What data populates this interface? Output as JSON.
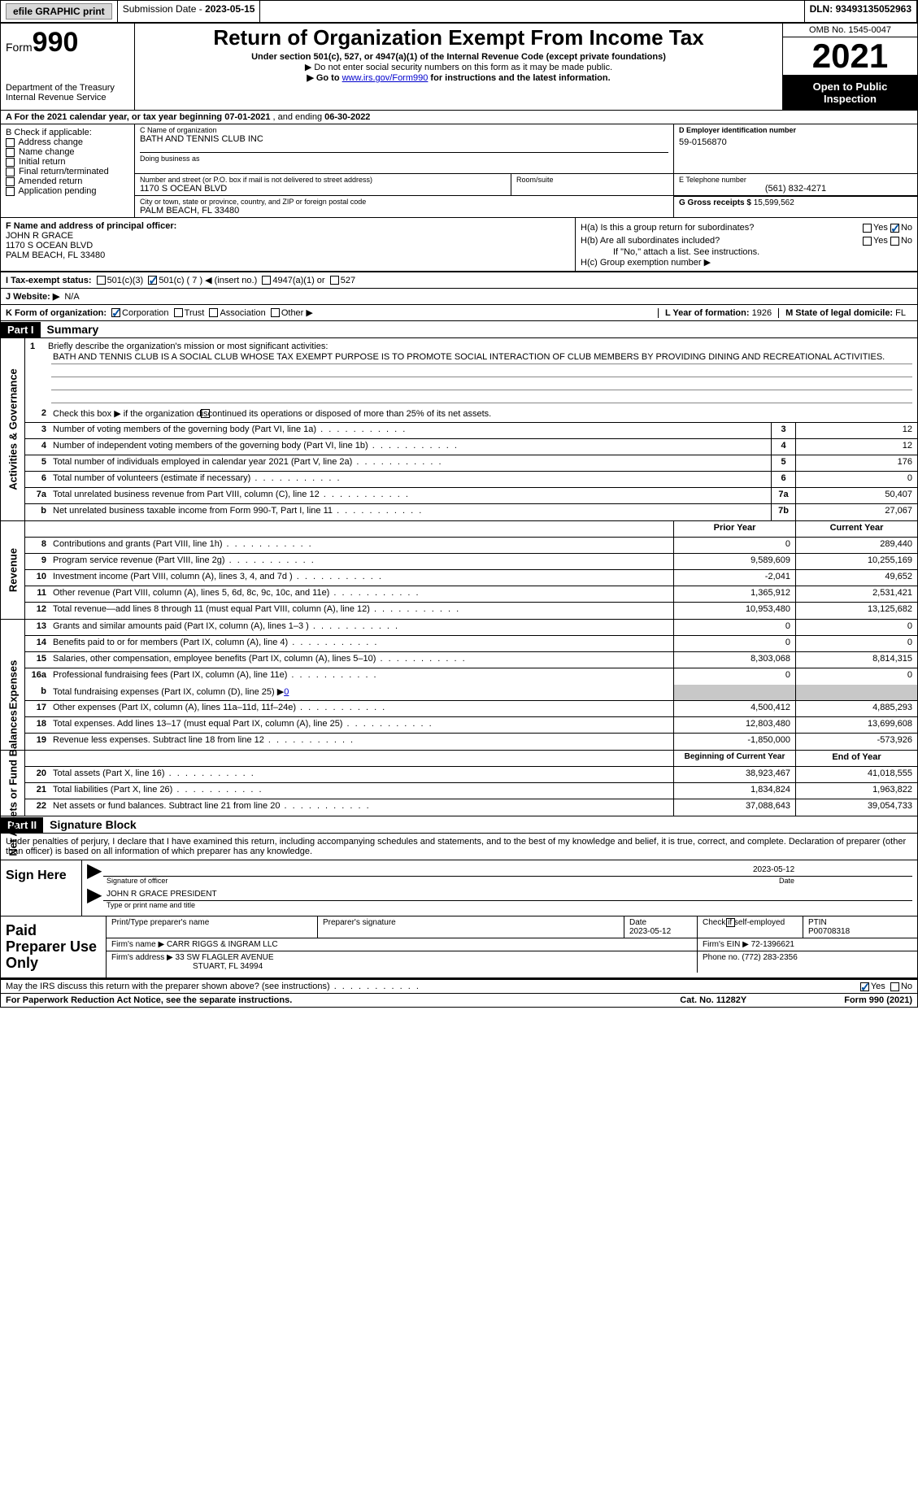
{
  "topbar": {
    "efile": "efile GRAPHIC print",
    "sub_label": "Submission Date - ",
    "sub_date": "2023-05-15",
    "dln_label": "DLN: ",
    "dln": "93493135052963"
  },
  "header": {
    "form_word": "Form",
    "form_num": "990",
    "dept1": "Department of the Treasury",
    "dept2": "Internal Revenue Service",
    "title": "Return of Organization Exempt From Income Tax",
    "sub": "Under section 501(c), 527, or 4947(a)(1) of the Internal Revenue Code (except private foundations)",
    "warn1": "▶ Do not enter social security numbers on this form as it may be made public.",
    "warn2_pre": "▶ Go to ",
    "warn2_link": "www.irs.gov/Form990",
    "warn2_post": " for instructions and the latest information.",
    "omb": "OMB No. 1545-0047",
    "year": "2021",
    "inspect": "Open to Public Inspection"
  },
  "rowA": {
    "label": "A  For the 2021 calendar year, or tax year beginning ",
    "begin": "07-01-2021",
    "mid": "   , and ending ",
    "end": "06-30-2022"
  },
  "colB": {
    "label": "B Check if applicable:",
    "opts": [
      "Address change",
      "Name change",
      "Initial return",
      "Final return/terminated",
      "Amended return",
      "Application pending"
    ]
  },
  "colC": {
    "name_label": "C Name of organization",
    "name": "BATH AND TENNIS CLUB INC",
    "dba_label": "Doing business as",
    "addr_label": "Number and street (or P.O. box if mail is not delivered to street address)",
    "suite_label": "Room/suite",
    "addr": "1170 S OCEAN BLVD",
    "city_label": "City or town, state or province, country, and ZIP or foreign postal code",
    "city": "PALM BEACH, FL  33480"
  },
  "colD": {
    "ein_label": "D Employer identification number",
    "ein": "59-0156870",
    "tel_label": "E Telephone number",
    "tel": "(561) 832-4271",
    "gross_label": "G Gross receipts $ ",
    "gross": "15,599,562"
  },
  "secF": {
    "label": "F Name and address of principal officer:",
    "name": "JOHN R GRACE",
    "addr1": "1170 S OCEAN BLVD",
    "addr2": "PALM BEACH, FL  33480"
  },
  "secH": {
    "a": "H(a)  Is this a group return for subordinates?",
    "b": "H(b)  Are all subordinates included?",
    "b_note": "If \"No,\" attach a list. See instructions.",
    "c": "H(c)  Group exemption number ▶",
    "yes": "Yes",
    "no": "No"
  },
  "rowI": {
    "label": "I    Tax-exempt status:",
    "o1": "501(c)(3)",
    "o2": "501(c) ( 7 ) ◀ (insert no.)",
    "o3": "4947(a)(1) or",
    "o4": "527"
  },
  "rowJ": {
    "label": "J   Website: ▶",
    "val": "N/A"
  },
  "rowK": {
    "label": "K Form of organization:",
    "o1": "Corporation",
    "o2": "Trust",
    "o3": "Association",
    "o4": "Other ▶",
    "l_year": "L Year of formation: ",
    "l_val": "1926",
    "m_state": "M State of legal domicile: ",
    "m_val": "FL"
  },
  "part1": {
    "hdr": "Part I",
    "title": "Summary"
  },
  "summary": {
    "l1_label": "Briefly describe the organization's mission or most significant activities:",
    "l1_text": "BATH AND TENNIS CLUB IS A SOCIAL CLUB WHOSE TAX EXEMPT PURPOSE IS TO PROMOTE SOCIAL INTERACTION OF CLUB MEMBERS BY PROVIDING DINING AND RECREATIONAL ACTIVITIES.",
    "l2": "Check this box ▶       if the organization discontinued its operations or disposed of more than 25% of its net assets.",
    "rows_top": [
      {
        "n": "3",
        "d": "Number of voting members of the governing body (Part VI, line 1a)",
        "b": "3",
        "v": "12"
      },
      {
        "n": "4",
        "d": "Number of independent voting members of the governing body (Part VI, line 1b)",
        "b": "4",
        "v": "12"
      },
      {
        "n": "5",
        "d": "Total number of individuals employed in calendar year 2021 (Part V, line 2a)",
        "b": "5",
        "v": "176"
      },
      {
        "n": "6",
        "d": "Total number of volunteers (estimate if necessary)",
        "b": "6",
        "v": "0"
      },
      {
        "n": "7a",
        "d": "Total unrelated business revenue from Part VIII, column (C), line 12",
        "b": "7a",
        "v": "50,407"
      },
      {
        "n": "b",
        "d": "Net unrelated business taxable income from Form 990-T, Part I, line 11",
        "b": "7b",
        "v": "27,067"
      }
    ],
    "prior": "Prior Year",
    "current": "Current Year",
    "revenue": [
      {
        "n": "8",
        "d": "Contributions and grants (Part VIII, line 1h)",
        "p": "0",
        "c": "289,440"
      },
      {
        "n": "9",
        "d": "Program service revenue (Part VIII, line 2g)",
        "p": "9,589,609",
        "c": "10,255,169"
      },
      {
        "n": "10",
        "d": "Investment income (Part VIII, column (A), lines 3, 4, and 7d )",
        "p": "-2,041",
        "c": "49,652"
      },
      {
        "n": "11",
        "d": "Other revenue (Part VIII, column (A), lines 5, 6d, 8c, 9c, 10c, and 11e)",
        "p": "1,365,912",
        "c": "2,531,421"
      },
      {
        "n": "12",
        "d": "Total revenue—add lines 8 through 11 (must equal Part VIII, column (A), line 12)",
        "p": "10,953,480",
        "c": "13,125,682"
      }
    ],
    "expenses": [
      {
        "n": "13",
        "d": "Grants and similar amounts paid (Part IX, column (A), lines 1–3 )",
        "p": "0",
        "c": "0"
      },
      {
        "n": "14",
        "d": "Benefits paid to or for members (Part IX, column (A), line 4)",
        "p": "0",
        "c": "0"
      },
      {
        "n": "15",
        "d": "Salaries, other compensation, employee benefits (Part IX, column (A), lines 5–10)",
        "p": "8,303,068",
        "c": "8,814,315"
      },
      {
        "n": "16a",
        "d": "Professional fundraising fees (Part IX, column (A), line 11e)",
        "p": "0",
        "c": "0"
      }
    ],
    "l16b_pre": "Total fundraising expenses (Part IX, column (D), line 25) ▶",
    "l16b_val": "0",
    "expenses2": [
      {
        "n": "17",
        "d": "Other expenses (Part IX, column (A), lines 11a–11d, 11f–24e)",
        "p": "4,500,412",
        "c": "4,885,293"
      },
      {
        "n": "18",
        "d": "Total expenses. Add lines 13–17 (must equal Part IX, column (A), line 25)",
        "p": "12,803,480",
        "c": "13,699,608"
      },
      {
        "n": "19",
        "d": "Revenue less expenses. Subtract line 18 from line 12",
        "p": "-1,850,000",
        "c": "-573,926"
      }
    ],
    "begin": "Beginning of Current Year",
    "end": "End of Year",
    "net": [
      {
        "n": "20",
        "d": "Total assets (Part X, line 16)",
        "p": "38,923,467",
        "c": "41,018,555"
      },
      {
        "n": "21",
        "d": "Total liabilities (Part X, line 26)",
        "p": "1,834,824",
        "c": "1,963,822"
      },
      {
        "n": "22",
        "d": "Net assets or fund balances. Subtract line 21 from line 20",
        "p": "37,088,643",
        "c": "39,054,733"
      }
    ],
    "vlabels": {
      "gov": "Activities & Governance",
      "rev": "Revenue",
      "exp": "Expenses",
      "net": "Net Assets or Fund Balances"
    }
  },
  "part2": {
    "hdr": "Part II",
    "title": "Signature Block"
  },
  "sig": {
    "decl": "Under penalties of perjury, I declare that I have examined this return, including accompanying schedules and statements, and to the best of my knowledge and belief, it is true, correct, and complete. Declaration of preparer (other than officer) is based on all information of which preparer has any knowledge.",
    "sign_here": "Sign Here",
    "officer_sig": "Signature of officer",
    "date": "Date",
    "date_val": "2023-05-12",
    "name_title": "JOHN R GRACE  PRESIDENT",
    "name_label": "Type or print name and title"
  },
  "prep": {
    "hdr": "Paid Preparer Use Only",
    "pname_label": "Print/Type preparer's name",
    "psig_label": "Preparer's signature",
    "pdate_label": "Date",
    "pdate": "2023-05-12",
    "pcheck": "Check        if self-employed",
    "ptin_label": "PTIN",
    "ptin": "P00708318",
    "firm_name_label": "Firm's name      ▶ ",
    "firm_name": "CARR RIGGS & INGRAM LLC",
    "firm_ein_label": "Firm's EIN ▶ ",
    "firm_ein": "72-1396621",
    "firm_addr_label": "Firm's address ▶ ",
    "firm_addr1": "33 SW FLAGLER AVENUE",
    "firm_addr2": "STUART, FL  34994",
    "phone_label": "Phone no. ",
    "phone": "(772) 283-2356"
  },
  "lastline": {
    "q": "May the IRS discuss this return with the preparer shown above? (see instructions)",
    "yes": "Yes",
    "no": "No"
  },
  "footer": {
    "left": "For Paperwork Reduction Act Notice, see the separate instructions.",
    "mid": "Cat. No. 11282Y",
    "right": "Form 990 (2021)"
  }
}
